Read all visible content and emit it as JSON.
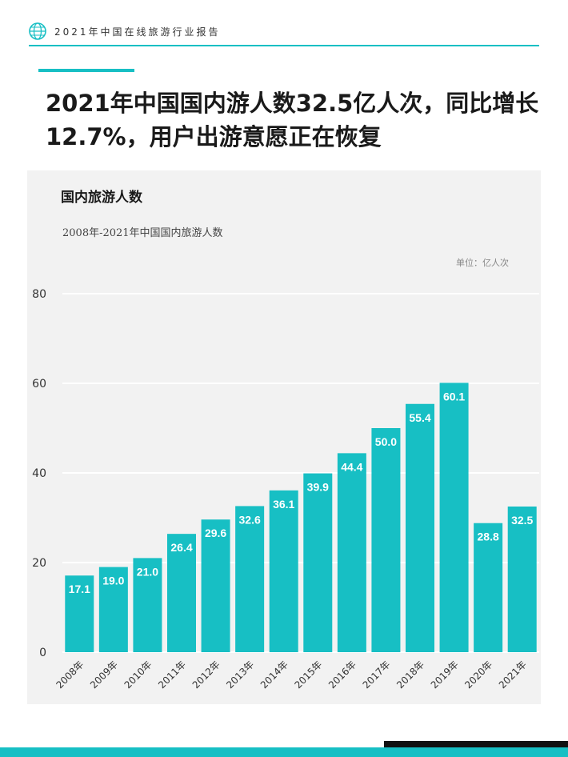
{
  "header": {
    "title": "2021年中国在线旅游行业报告",
    "logo_icon": "globe-icon"
  },
  "headline": "2021年中国国内游人数32.5亿人次，同比增长12.7%，用户出游意愿正在恢复",
  "chart_data": {
    "type": "bar",
    "title": "国内旅游人数",
    "subtitle": "2008年-2021年中国国内旅游人数",
    "unit": "单位：亿人次",
    "xlabel": "",
    "ylabel": "",
    "categories": [
      "2008年",
      "2009年",
      "2010年",
      "2011年",
      "2012年",
      "2013年",
      "2014年",
      "2015年",
      "2016年",
      "2017年",
      "2018年",
      "2019年",
      "2020年",
      "2021年"
    ],
    "values": [
      17.1,
      19.0,
      21.0,
      26.4,
      29.6,
      32.6,
      36.1,
      39.9,
      44.4,
      50.0,
      55.4,
      60.1,
      28.8,
      32.5
    ],
    "value_labels": [
      "17.1",
      "19.0",
      "21.0",
      "26.4",
      "29.6",
      "32.6",
      "36.1",
      "39.9",
      "44.4",
      "50.0",
      "55.4",
      "60.1",
      "28.8",
      "32.5"
    ],
    "ylim": [
      0,
      80
    ],
    "yticks": [
      0,
      20,
      40,
      60,
      80
    ],
    "grid": true,
    "bar_color": "#17bfc4",
    "label_color": "#ffffff"
  },
  "colors": {
    "accent": "#17bfc4",
    "panel_bg": "#f2f2f2",
    "grid": "#ffffff"
  }
}
